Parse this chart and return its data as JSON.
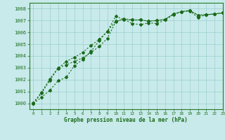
{
  "title": "Graphe pression niveau de la mer (hPa)",
  "background_color": "#c8eaea",
  "grid_color": "#9ecece",
  "line_color": "#1a6b1a",
  "xlim": [
    -0.5,
    23
  ],
  "ylim": [
    999.5,
    1008.5
  ],
  "yticks": [
    1000,
    1001,
    1002,
    1003,
    1004,
    1005,
    1006,
    1007,
    1008
  ],
  "xticks": [
    0,
    1,
    2,
    3,
    4,
    5,
    6,
    7,
    8,
    9,
    10,
    11,
    12,
    13,
    14,
    15,
    16,
    17,
    18,
    19,
    20,
    21,
    22,
    23
  ],
  "series": [
    [
      1000.0,
      1000.5,
      1001.1,
      1001.9,
      1002.2,
      1003.2,
      1003.7,
      1004.4,
      1005.3,
      1006.1,
      1007.35,
      1007.1,
      1006.75,
      1006.65,
      1006.8,
      1006.75,
      1007.05,
      1007.5,
      1007.75,
      1007.8,
      1007.25,
      1007.5,
      1007.55,
      1007.65
    ],
    [
      1000.05,
      1000.95,
      1002.05,
      1003.0,
      1003.25,
      1003.55,
      1003.85,
      1004.3,
      1004.8,
      1005.5,
      1006.9,
      1007.15,
      1007.05,
      1007.05,
      1006.95,
      1007.0,
      1007.1,
      1007.55,
      1007.75,
      1007.85,
      1007.45,
      1007.5,
      1007.55,
      1007.65
    ],
    [
      1000.0,
      1000.85,
      1001.95,
      1002.95,
      1003.55,
      1003.9,
      1004.3,
      1004.9,
      1005.4,
      1006.1,
      1006.95,
      1007.1,
      1007.05,
      1007.05,
      1006.95,
      1007.0,
      1007.1,
      1007.55,
      1007.75,
      1007.85,
      1007.45,
      1007.5,
      1007.55,
      1007.65
    ]
  ]
}
